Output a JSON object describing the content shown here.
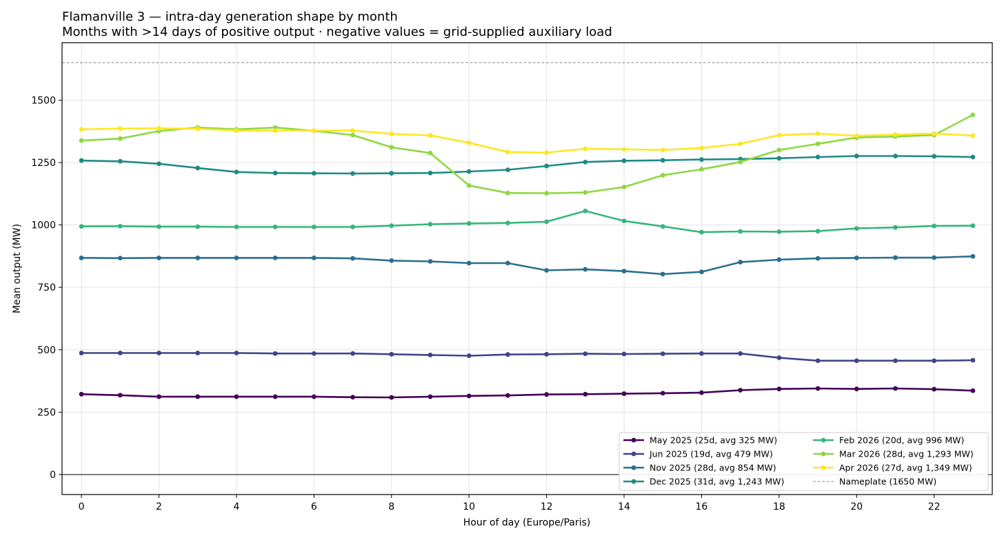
{
  "chart_data": {
    "type": "line",
    "title": "Flamanville 3 — intra-day generation shape by month",
    "subtitle": "Months with >14 days of positive output · negative values = grid-supplied auxiliary load",
    "xlabel": "Hour of day (Europe/Paris)",
    "ylabel": "Mean output (MW)",
    "xlim": [
      -0.5,
      23.5
    ],
    "ylim": [
      -80,
      1730
    ],
    "xticks": [
      0,
      2,
      4,
      6,
      8,
      10,
      12,
      14,
      16,
      18,
      20,
      22
    ],
    "yticks": [
      0,
      250,
      500,
      750,
      1000,
      1250,
      1500
    ],
    "grid": true,
    "legend_position": "bottom-right",
    "x": [
      0,
      1,
      2,
      3,
      4,
      5,
      6,
      7,
      8,
      9,
      10,
      11,
      12,
      13,
      14,
      15,
      16,
      17,
      18,
      19,
      20,
      21,
      22,
      23
    ],
    "series": [
      {
        "name": "May 2025",
        "label": "May 2025  (25d, avg 325 MW)",
        "color": "#440154",
        "values": [
          322,
          318,
          312,
          312,
          312,
          312,
          312,
          310,
          309,
          312,
          315,
          317,
          321,
          322,
          324,
          326,
          328,
          338,
          343,
          345,
          343,
          345,
          342,
          336
        ]
      },
      {
        "name": "Jun 2025",
        "label": "Jun 2025  (19d, avg 479 MW)",
        "color": "#414487",
        "values": [
          487,
          487,
          487,
          487,
          487,
          485,
          485,
          485,
          482,
          479,
          476,
          481,
          482,
          484,
          483,
          484,
          485,
          485,
          468,
          456,
          456,
          456,
          456,
          458
        ]
      },
      {
        "name": "Nov 2025",
        "label": "Nov 2025  (28d, avg 854 MW)",
        "color": "#2a6f8e",
        "values": [
          868,
          867,
          868,
          868,
          868,
          868,
          868,
          866,
          857,
          854,
          847,
          847,
          818,
          822,
          815,
          803,
          812,
          851,
          861,
          866,
          868,
          869,
          869,
          874
        ]
      },
      {
        "name": "Dec 2025",
        "label": "Dec 2025  (31d, avg 1,243 MW)",
        "color": "#1f8a87",
        "values": [
          1258,
          1255,
          1245,
          1228,
          1212,
          1208,
          1207,
          1206,
          1207,
          1208,
          1214,
          1221,
          1236,
          1252,
          1257,
          1259,
          1262,
          1264,
          1267,
          1272,
          1276,
          1276,
          1275,
          1272
        ]
      },
      {
        "name": "Feb 2026",
        "label": "Feb 2026  (20d, avg 996 MW)",
        "color": "#35b779",
        "values": [
          994,
          995,
          993,
          993,
          992,
          992,
          992,
          992,
          997,
          1003,
          1006,
          1008,
          1013,
          1056,
          1016,
          994,
          971,
          974,
          973,
          975,
          986,
          990,
          996,
          997
        ]
      },
      {
        "name": "Mar 2026",
        "label": "Mar 2026  (28d, avg 1,293 MW)",
        "color": "#8fd744",
        "values": [
          1338,
          1346,
          1376,
          1390,
          1383,
          1390,
          1377,
          1360,
          1311,
          1288,
          1158,
          1128,
          1127,
          1130,
          1152,
          1199,
          1223,
          1252,
          1300,
          1325,
          1350,
          1354,
          1360,
          1441
        ]
      },
      {
        "name": "Apr 2026",
        "label": "Apr 2026  (27d, avg 1,349 MW)",
        "color": "#fde725",
        "values": [
          1383,
          1386,
          1387,
          1385,
          1378,
          1378,
          1378,
          1378,
          1365,
          1359,
          1329,
          1292,
          1290,
          1305,
          1303,
          1300,
          1308,
          1325,
          1360,
          1366,
          1357,
          1362,
          1366,
          1358
        ]
      }
    ],
    "reference_line": {
      "label": "Nameplate (1650 MW)",
      "value": 1650,
      "color": "#888888"
    }
  }
}
